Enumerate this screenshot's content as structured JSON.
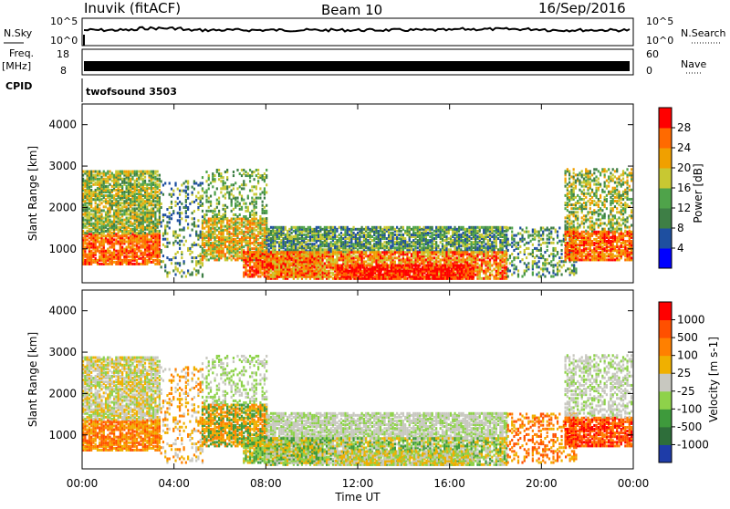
{
  "header": {
    "station": "Inuvik (fitACF)",
    "beam": "Beam 10",
    "date": "16/Sep/2016"
  },
  "noise_panel": {
    "left_label": "N.Sky",
    "left_ticks": [
      "10^5",
      "10^0"
    ],
    "right_ticks": [
      "10^5",
      "10^0"
    ],
    "right_label": "N.Search"
  },
  "freq_panel": {
    "label_line1": "Freq.",
    "label_line2": "[MHz]",
    "left_ticks": [
      "18",
      "8"
    ],
    "right_ticks": [
      "60",
      "0"
    ],
    "right_label": "Nave"
  },
  "cpid_panel": {
    "label": "CPID",
    "program": "twofsound 3503"
  },
  "chart_data": [
    {
      "type": "heatmap",
      "name": "power",
      "ylabel": "Slant Range [km]",
      "yticks": [
        "4000",
        "3000",
        "2000",
        "1000"
      ],
      "colorbar_label": "Power [dB]",
      "colorbar_ticks": [
        "28",
        "24",
        "20",
        "16",
        "12",
        "8",
        "4"
      ],
      "colorbar_colors": [
        "#0000ff",
        "#1e4fa0",
        "#3e7f46",
        "#4fa34a",
        "#c8c832",
        "#f0a000",
        "#ff6a00",
        "#ff0000"
      ],
      "ylim": [
        180,
        4500
      ],
      "xlim_hours": [
        0,
        24
      ]
    },
    {
      "type": "heatmap",
      "name": "velocity",
      "ylabel": "Slant Range [km]",
      "yticks": [
        "4000",
        "3000",
        "2000",
        "1000"
      ],
      "colorbar_label": "Velocity [m s-1]",
      "colorbar_ticks": [
        "1000",
        "500",
        "100",
        "25",
        "-25",
        "-100",
        "-500",
        "-1000"
      ],
      "colorbar_colors": [
        "#1e3ca8",
        "#2e6e3a",
        "#3e9a3c",
        "#8ed24a",
        "#c8c8c0",
        "#f0b000",
        "#ff8000",
        "#ff5000",
        "#ff0000"
      ],
      "ylim": [
        180,
        4500
      ],
      "xlim_hours": [
        0,
        24
      ]
    }
  ],
  "time_axis": {
    "ticks": [
      "00:00",
      "04:00",
      "08:00",
      "12:00",
      "16:00",
      "20:00",
      "00:00"
    ],
    "label": "Time UT"
  }
}
